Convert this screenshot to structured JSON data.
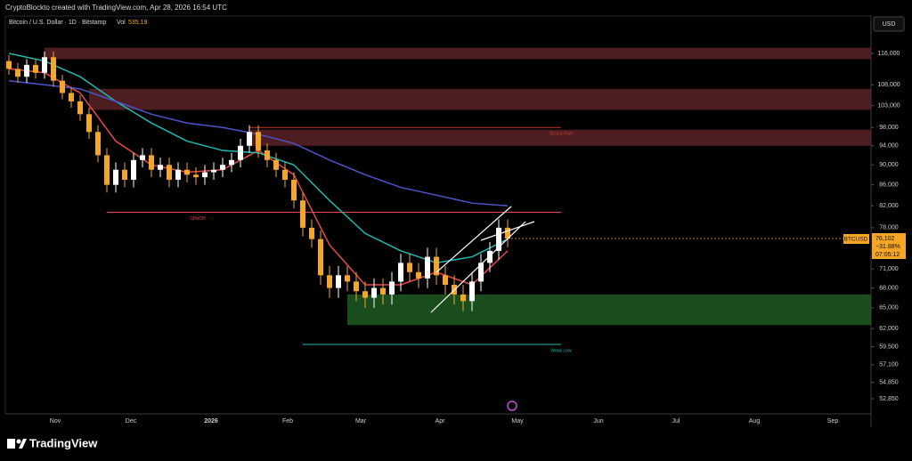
{
  "chart_data": {
    "type": "candlestick",
    "title": "CryptoBlockto created with TradingView.com, Apr 28, 2026 16:54 UTC",
    "symbol": "Bitcoin / U.S. Dollar · 1D · Bitstamp",
    "volume_label": "Vol",
    "volume": 535.19,
    "currency": "USD",
    "ticker": "BTCUSD",
    "last_price": 76102,
    "last_price_label": "76,102",
    "change_label": "−31.88%",
    "countdown": "07:05:12",
    "logo": "TradingView",
    "log_scale": true,
    "ylim": [
      51060,
      126300
    ],
    "yticks": [
      {
        "value": 116000,
        "label": "116,000"
      },
      {
        "value": 108000,
        "label": "108,000"
      },
      {
        "value": 103000,
        "label": "103,000"
      },
      {
        "value": 98000,
        "label": "98,000"
      },
      {
        "value": 94000,
        "label": "94,000"
      },
      {
        "value": 90000,
        "label": "90,000"
      },
      {
        "value": 86000,
        "label": "86,000"
      },
      {
        "value": 82000,
        "label": "82,000"
      },
      {
        "value": 78000,
        "label": "78,000"
      },
      {
        "value": 71000,
        "label": "71,000"
      },
      {
        "value": 68000,
        "label": "68,000"
      },
      {
        "value": 65000,
        "label": "65,000"
      },
      {
        "value": 62000,
        "label": "62,000"
      },
      {
        "value": 59500,
        "label": "59,500"
      },
      {
        "value": 57100,
        "label": "57,100"
      },
      {
        "value": 54850,
        "label": "54,850"
      },
      {
        "value": 52850,
        "label": "52,850"
      }
    ],
    "time_labels": [
      "Nov",
      "Dec",
      "2026",
      "Feb",
      "Mar",
      "Apr",
      "May",
      "Jun",
      "Jul",
      "Aug",
      "Sep"
    ],
    "up_color": "#ffffff",
    "down_color": "#f5a623",
    "open": [
      114000,
      112000,
      110000,
      113000,
      111000,
      115000,
      109000,
      106000,
      104000,
      101000,
      97000,
      92000,
      86000,
      89000,
      87000,
      91000,
      92000,
      89000,
      90000,
      87000,
      89000,
      88000,
      87500,
      88500,
      89000,
      90000,
      91000,
      94000,
      97000,
      93000,
      91000,
      89000,
      87000,
      83000,
      78000,
      76000,
      70000,
      68000,
      70000,
      69000,
      67500,
      66500,
      68000,
      67000,
      69000,
      72000,
      70500,
      69500,
      73000,
      70000,
      68500,
      67000,
      66000,
      69000,
      72000,
      74000,
      78000
    ],
    "high": [
      115500,
      113500,
      114500,
      114500,
      116500,
      116500,
      110500,
      107500,
      105500,
      102500,
      98500,
      93500,
      90500,
      90500,
      92500,
      93500,
      93500,
      91500,
      91500,
      90500,
      90500,
      89500,
      90000,
      90500,
      91500,
      92500,
      95500,
      98500,
      98500,
      94500,
      92500,
      90500,
      88500,
      84500,
      79500,
      77500,
      71500,
      71500,
      71500,
      70500,
      69000,
      69500,
      69500,
      70500,
      73500,
      73500,
      72000,
      74500,
      74500,
      71500,
      70000,
      68500,
      70500,
      73500,
      75500,
      79500,
      79500
    ],
    "low": [
      110500,
      108500,
      108500,
      109500,
      109500,
      107500,
      104500,
      102500,
      99500,
      95500,
      90500,
      84500,
      84500,
      85500,
      85500,
      89500,
      87500,
      87500,
      85500,
      85500,
      86500,
      86000,
      86000,
      87000,
      87500,
      88500,
      89500,
      92500,
      91500,
      89500,
      87500,
      85500,
      81500,
      76500,
      74500,
      68500,
      66500,
      66500,
      67500,
      66000,
      65000,
      65000,
      65500,
      65500,
      67500,
      69000,
      68000,
      68000,
      68500,
      67000,
      65500,
      64500,
      64500,
      67500,
      70500,
      72500,
      74600
    ],
    "close": [
      112000,
      110000,
      113000,
      111000,
      115000,
      109000,
      106000,
      104000,
      101000,
      97000,
      92000,
      86000,
      89000,
      87000,
      91000,
      92000,
      89000,
      90000,
      87000,
      89000,
      88000,
      87500,
      88500,
      89000,
      90000,
      91000,
      94000,
      97000,
      93000,
      91000,
      89000,
      87000,
      83000,
      78000,
      76000,
      70000,
      68000,
      70000,
      69000,
      67500,
      66500,
      68000,
      67000,
      69000,
      72000,
      70500,
      69500,
      73000,
      70000,
      68500,
      67000,
      66000,
      69000,
      72000,
      74000,
      78000,
      76102
    ],
    "series": [
      {
        "color": "#e8484a",
        "x": [
          0,
          4,
          8,
          12,
          16,
          20,
          24,
          28,
          32,
          36,
          40,
          44,
          48,
          52,
          56
        ],
        "values": [
          112000,
          111000,
          106000,
          95000,
          90000,
          88500,
          89000,
          93000,
          88000,
          75000,
          68500,
          68500,
          70500,
          68500,
          74000
        ]
      },
      {
        "color": "#22b8b0",
        "x": [
          0,
          4,
          8,
          12,
          16,
          20,
          24,
          28,
          32,
          36,
          40,
          44,
          48,
          52,
          56
        ],
        "values": [
          116000,
          114000,
          110000,
          104000,
          99000,
          95000,
          93000,
          92500,
          90000,
          83000,
          77000,
          74000,
          72000,
          73000,
          76000
        ]
      },
      {
        "color": "#4a56c8",
        "x": [
          0,
          4,
          8,
          12,
          16,
          20,
          24,
          28,
          32,
          36,
          40,
          44,
          48,
          52,
          56
        ],
        "values": [
          109000,
          108000,
          107000,
          104000,
          101000,
          99000,
          98000,
          96500,
          94500,
          91000,
          88000,
          85500,
          84000,
          82500,
          82000
        ]
      }
    ],
    "zones": [
      {
        "high": 117500,
        "low": 114500,
        "x_start": 4,
        "color": "#5a2228"
      },
      {
        "high": 107000,
        "low": 102000,
        "x_start": 9,
        "color": "#5a2228"
      },
      {
        "high": 97500,
        "low": 94000,
        "x_start": 27,
        "color": "#5a2228"
      },
      {
        "high": 67000,
        "low": 62500,
        "x_start": 38,
        "color": "#1f5a22"
      }
    ],
    "levels": [
      {
        "label": "Strong High",
        "value": 98000,
        "x_start": 27,
        "color": "#c0392b"
      },
      {
        "label": "Weak Low",
        "value": 59800,
        "x_start": 33,
        "color": "#22b8b0"
      },
      {
        "label": "CHoCH",
        "value": 80800,
        "x_start": 11,
        "color": "#e8484a"
      }
    ]
  }
}
